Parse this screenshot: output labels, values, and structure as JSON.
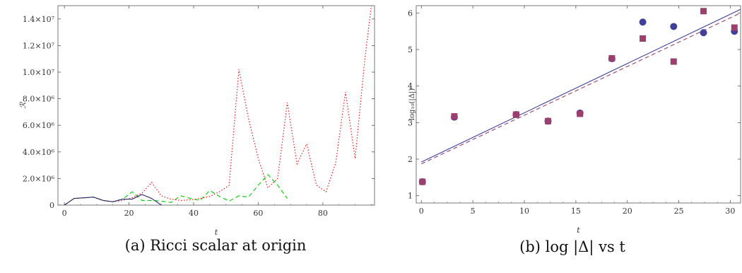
{
  "chart_data": [
    {
      "type": "line",
      "caption": "(a) Ricci scalar at origin",
      "xlabel": "t",
      "ylabel": "ℛ",
      "xlim": [
        -2,
        96
      ],
      "ylim": [
        0,
        15000000
      ],
      "x_ticks": [
        0,
        20,
        40,
        60,
        80
      ],
      "y_ticks": [
        {
          "value": 0,
          "label": "0"
        },
        {
          "value": 2000000,
          "label": "2.0×10⁶"
        },
        {
          "value": 4000000,
          "label": "4.0×10⁶"
        },
        {
          "value": 6000000,
          "label": "6.0×10⁶"
        },
        {
          "value": 8000000,
          "label": "8.0×10⁶"
        },
        {
          "value": 10000000,
          "label": "1.0×10⁷"
        },
        {
          "value": 12000000,
          "label": "1.2×10⁷"
        },
        {
          "value": 14000000,
          "label": "1.4×10⁷"
        }
      ],
      "series": [
        {
          "color": "#ff0000",
          "dash": "dotted",
          "x": [
            0,
            3,
            6,
            9,
            12,
            15,
            18,
            21,
            24,
            27,
            30,
            33,
            36,
            39,
            42,
            45,
            48,
            51,
            54,
            57,
            60,
            63,
            66,
            69,
            72,
            75,
            78,
            81,
            84,
            87,
            90,
            93,
            95
          ],
          "y": [
            0,
            500000,
            550000,
            600000,
            350000,
            250000,
            350000,
            550000,
            900000,
            1700000,
            700000,
            450000,
            350000,
            400000,
            500000,
            650000,
            1000000,
            1500000,
            10200000,
            6500000,
            3500000,
            1300000,
            2000000,
            7700000,
            3100000,
            4600000,
            1500000,
            1000000,
            3200000,
            8500000,
            3500000,
            11000000,
            15000000
          ]
        },
        {
          "color": "#00cc00",
          "dash": "dashed",
          "x": [
            0,
            3,
            6,
            9,
            12,
            15,
            18,
            21,
            24,
            27,
            30,
            33,
            36,
            39,
            42,
            45,
            48,
            51,
            54,
            57,
            60,
            63,
            66,
            69
          ],
          "y": [
            0,
            500000,
            550000,
            600000,
            350000,
            250000,
            450000,
            1000000,
            350000,
            350000,
            300000,
            200000,
            700000,
            500000,
            350000,
            1100000,
            650000,
            300000,
            700000,
            600000,
            1500000,
            2300000,
            1500000,
            500000
          ]
        },
        {
          "color": "#2a2a6e",
          "dash": "solid",
          "x": [
            0,
            3,
            6,
            9,
            12,
            15,
            18,
            21,
            24,
            27,
            30
          ],
          "y": [
            0,
            500000,
            550000,
            600000,
            350000,
            250000,
            450000,
            450000,
            800000,
            500000,
            0
          ]
        }
      ]
    },
    {
      "type": "scatter",
      "caption": "(b) log |Δ| vs t",
      "xlabel": "t",
      "ylabel": "log₁₀(|Δ|)",
      "xlim": [
        -0.5,
        31
      ],
      "ylim": [
        0.8,
        6.2
      ],
      "x_ticks": [
        0,
        5,
        10,
        15,
        20,
        25,
        30
      ],
      "y_ticks": [
        1,
        2,
        3,
        4,
        5,
        6
      ],
      "series": [
        {
          "marker": "circle",
          "color": "#3f3f9c",
          "x": [
            0.1,
            3.2,
            9.2,
            12.3,
            15.4,
            18.5,
            21.5,
            24.5,
            27.4,
            30.4
          ],
          "y": [
            1.38,
            3.15,
            3.22,
            3.04,
            3.26,
            4.75,
            5.75,
            5.63,
            5.46,
            5.5
          ],
          "fit": {
            "x": [
              0,
              31
            ],
            "y": [
              1.92,
              6.1
            ],
            "dash": "solid",
            "color": "#3f3f9c"
          }
        },
        {
          "marker": "square",
          "color": "#9c3f6e",
          "x": [
            0.1,
            3.2,
            9.2,
            12.3,
            15.4,
            18.5,
            21.5,
            24.5,
            27.4,
            30.4
          ],
          "y": [
            1.38,
            3.17,
            3.22,
            3.04,
            3.24,
            4.76,
            5.3,
            4.67,
            6.05,
            5.6
          ],
          "fit": {
            "x": [
              0,
              31
            ],
            "y": [
              1.87,
              6.0
            ],
            "dash": "dashed",
            "color": "#9c3f6e"
          }
        }
      ]
    }
  ]
}
